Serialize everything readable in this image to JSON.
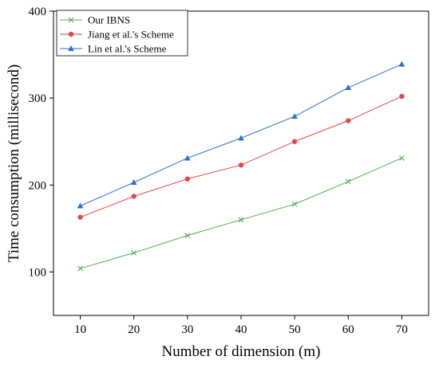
{
  "chart_data": {
    "type": "line",
    "xlabel": "Number of dimension (m)",
    "ylabel": "Time consumption (millisecond)",
    "x": [
      10,
      20,
      30,
      40,
      50,
      60,
      70
    ],
    "xlim": [
      5,
      75
    ],
    "ylim": [
      50,
      400
    ],
    "yticks": [
      100,
      200,
      300,
      400
    ],
    "grid": false,
    "legend": "top-left",
    "series": [
      {
        "name": "Our IBNS",
        "color": "#4caf50",
        "marker": "x",
        "values": [
          104,
          122,
          142,
          160,
          178,
          204,
          231
        ]
      },
      {
        "name": "Jiang et al.'s Scheme",
        "color": "#e04a4a",
        "marker": "circle",
        "values": [
          163,
          187,
          207,
          223,
          250,
          274,
          302
        ]
      },
      {
        "name": "Lin et al.'s Scheme",
        "color": "#2f6fc4",
        "marker": "triangle",
        "values": [
          176,
          203,
          231,
          254,
          279,
          312,
          339
        ]
      }
    ]
  }
}
